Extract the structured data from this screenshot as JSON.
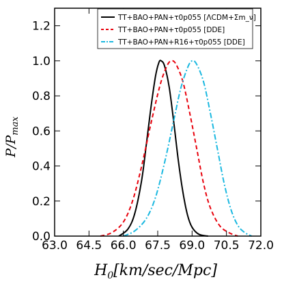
{
  "chart_data": {
    "type": "line",
    "xlabel": "H_0[km/sec/Mpc]",
    "ylabel": "P/P_max",
    "xlim": [
      63.0,
      72.0
    ],
    "ylim": [
      0.0,
      1.3
    ],
    "xticks": [
      "63.0",
      "64.5",
      "66.0",
      "67.5",
      "69.0",
      "70.5",
      "72.0"
    ],
    "xtick_values": [
      63.0,
      64.5,
      66.0,
      67.5,
      69.0,
      70.5,
      72.0
    ],
    "yticks": [
      "0.0",
      "0.2",
      "0.4",
      "0.6",
      "0.8",
      "1.0",
      "1.2"
    ],
    "ytick_values": [
      0.0,
      0.2,
      0.4,
      0.6,
      0.8,
      1.0,
      1.2
    ],
    "legend_placement": "top-right",
    "grid": false,
    "series": [
      {
        "name": "TT+BAO+PAN+τ0p055 [ΛCDM+Σm_ν]",
        "color": "#000000",
        "style": "solid",
        "x": [
          65.8,
          66.2,
          66.5,
          66.8,
          67.0,
          67.2,
          67.4,
          67.55,
          67.65,
          67.8,
          68.0,
          68.2,
          68.4,
          68.6,
          68.8,
          69.0,
          69.3,
          69.7
        ],
        "y": [
          0.0,
          0.04,
          0.13,
          0.32,
          0.52,
          0.73,
          0.91,
          0.99,
          1.0,
          0.97,
          0.85,
          0.65,
          0.43,
          0.25,
          0.12,
          0.05,
          0.01,
          0.0
        ]
      },
      {
        "name": "TT+BAO+PAN+τ0p055 [DDE]",
        "color": "#e8000b",
        "style": "dashed",
        "x": [
          65.0,
          65.5,
          66.0,
          66.4,
          66.8,
          67.2,
          67.6,
          67.9,
          68.1,
          68.3,
          68.6,
          68.9,
          69.2,
          69.5,
          69.8,
          70.2,
          70.6,
          71.0
        ],
        "y": [
          0.0,
          0.02,
          0.08,
          0.2,
          0.4,
          0.64,
          0.86,
          0.97,
          1.0,
          0.98,
          0.88,
          0.7,
          0.5,
          0.3,
          0.16,
          0.06,
          0.02,
          0.0
        ]
      },
      {
        "name": "TT+BAO+PAN+R16+τ0p055 [DDE]",
        "color": "#1ab8e0",
        "style": "dashdot",
        "x": [
          66.0,
          66.5,
          67.0,
          67.4,
          67.8,
          68.2,
          68.5,
          68.8,
          69.0,
          69.2,
          69.5,
          69.8,
          70.1,
          70.4,
          70.7,
          71.0,
          71.3,
          71.6
        ],
        "y": [
          0.0,
          0.03,
          0.1,
          0.22,
          0.42,
          0.66,
          0.84,
          0.96,
          1.0,
          0.98,
          0.88,
          0.7,
          0.5,
          0.3,
          0.15,
          0.06,
          0.02,
          0.0
        ]
      }
    ]
  }
}
